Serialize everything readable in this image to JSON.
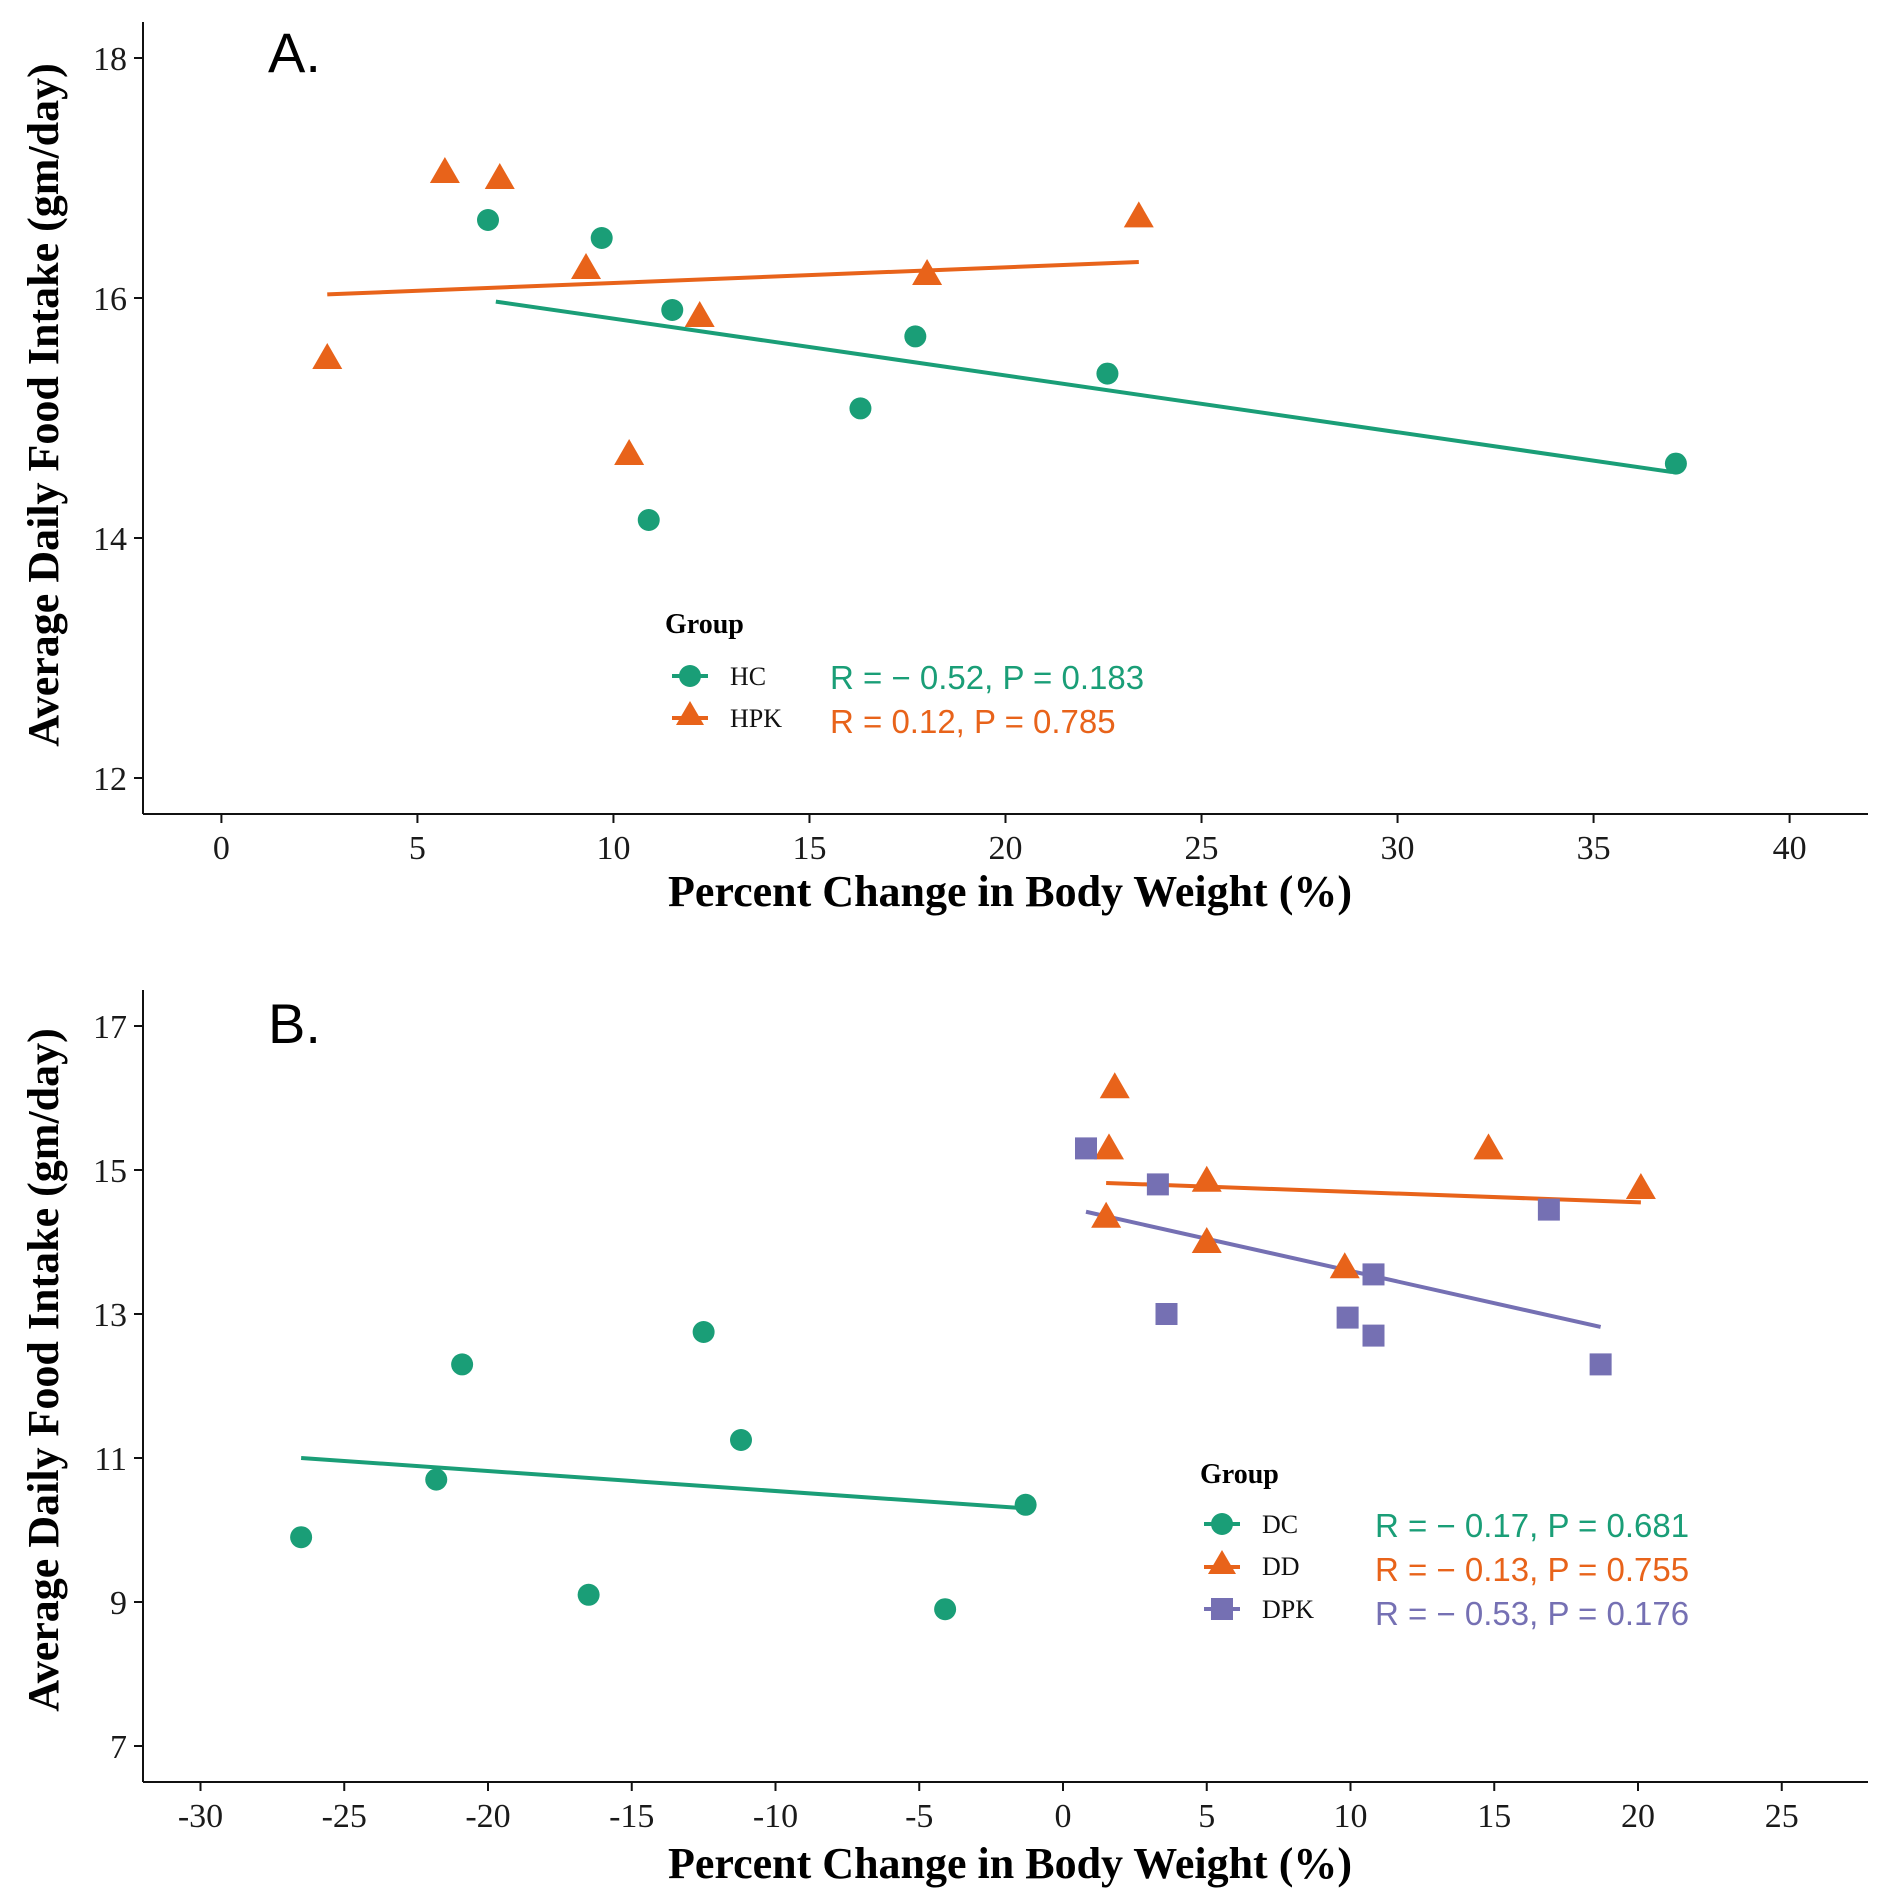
{
  "chart_data": [
    {
      "type": "scatter",
      "panel_label": "A.",
      "xlabel": "Percent Change in Body Weight (%)",
      "ylabel": "Average Daily Food Intake (gm/day)",
      "xlim": [
        -2,
        42
      ],
      "ylim": [
        11.7,
        18.3
      ],
      "xticks": [
        0,
        5,
        10,
        15,
        20,
        25,
        30,
        35,
        40
      ],
      "xtick_labels": [
        "0",
        "5",
        "10",
        "15",
        "20",
        "25",
        "30",
        "35",
        "40"
      ],
      "yticks": [
        12,
        14,
        16,
        18
      ],
      "ytick_labels": [
        "12",
        "14",
        "16",
        "18"
      ],
      "legend": {
        "title": "Group",
        "position": "center-bottom",
        "entries": [
          {
            "label": "HC",
            "marker": "circle",
            "color": "#1a9e77",
            "stat": "R = − 0.52, P = 0.183"
          },
          {
            "label": "HPK",
            "marker": "triangle",
            "color": "#e8631a",
            "stat": "R = 0.12, P = 0.785"
          }
        ]
      },
      "series": [
        {
          "name": "HC",
          "marker": "circle",
          "color": "#1a9e77",
          "points": [
            [
              6.8,
              16.65
            ],
            [
              9.7,
              16.5
            ],
            [
              11.5,
              15.9
            ],
            [
              17.7,
              15.68
            ],
            [
              22.6,
              15.37
            ],
            [
              16.3,
              15.08
            ],
            [
              10.9,
              14.15
            ],
            [
              37.1,
              14.62
            ]
          ],
          "fit": [
            [
              7.0,
              15.97
            ],
            [
              37.0,
              14.55
            ]
          ]
        },
        {
          "name": "HPK",
          "marker": "triangle",
          "color": "#e8631a",
          "points": [
            [
              5.7,
              17.05
            ],
            [
              7.1,
              17.0
            ],
            [
              23.4,
              16.68
            ],
            [
              9.3,
              16.25
            ],
            [
              18.0,
              16.2
            ],
            [
              12.2,
              15.85
            ],
            [
              2.7,
              15.5
            ],
            [
              10.4,
              14.7
            ]
          ],
          "fit": [
            [
              2.7,
              16.03
            ],
            [
              23.4,
              16.3
            ]
          ]
        }
      ]
    },
    {
      "type": "scatter",
      "panel_label": "B.",
      "xlabel": "Percent Change in Body Weight (%)",
      "ylabel": "Average Daily Food Intake (gm/day)",
      "xlim": [
        -32,
        28
      ],
      "ylim": [
        6.5,
        17.5
      ],
      "xticks": [
        -30,
        -25,
        -20,
        -15,
        -10,
        -5,
        0,
        5,
        10,
        15,
        20,
        25
      ],
      "xtick_labels": [
        "-30",
        "-25",
        "-20",
        "-15",
        "-10",
        "-5",
        "0",
        "5",
        "10",
        "15",
        "20",
        "25"
      ],
      "yticks": [
        7,
        9,
        11,
        13,
        15,
        17
      ],
      "ytick_labels": [
        "7",
        "9",
        "11",
        "13",
        "15",
        "17"
      ],
      "legend": {
        "title": "Group",
        "position": "bottom-right",
        "entries": [
          {
            "label": "DC",
            "marker": "circle",
            "color": "#1a9e77",
            "stat": "R = − 0.17, P = 0.681"
          },
          {
            "label": "DD",
            "marker": "triangle",
            "color": "#e8631a",
            "stat": "R = − 0.13, P = 0.755"
          },
          {
            "label": "DPK",
            "marker": "square",
            "color": "#7570b3",
            "stat": "R = − 0.53, P = 0.176"
          }
        ]
      },
      "series": [
        {
          "name": "DC",
          "marker": "circle",
          "color": "#1a9e77",
          "points": [
            [
              -26.5,
              9.9
            ],
            [
              -21.8,
              10.7
            ],
            [
              -20.9,
              12.3
            ],
            [
              -16.5,
              9.1
            ],
            [
              -12.5,
              12.75
            ],
            [
              -11.2,
              11.25
            ],
            [
              -4.1,
              8.9
            ],
            [
              -1.3,
              10.35
            ]
          ],
          "fit": [
            [
              -26.5,
              11.0
            ],
            [
              -1.3,
              10.3
            ]
          ]
        },
        {
          "name": "DD",
          "marker": "triangle",
          "color": "#e8631a",
          "points": [
            [
              1.8,
              16.15
            ],
            [
              1.6,
              15.3
            ],
            [
              14.8,
              15.3
            ],
            [
              5.0,
              14.85
            ],
            [
              20.1,
              14.75
            ],
            [
              1.5,
              14.35
            ],
            [
              5.0,
              14.0
            ],
            [
              9.8,
              13.65
            ]
          ],
          "fit": [
            [
              1.5,
              14.82
            ],
            [
              20.1,
              14.55
            ]
          ]
        },
        {
          "name": "DPK",
          "marker": "square",
          "color": "#7570b3",
          "points": [
            [
              0.8,
              15.3
            ],
            [
              3.3,
              14.8
            ],
            [
              16.9,
              14.45
            ],
            [
              10.8,
              13.55
            ],
            [
              3.6,
              13.0
            ],
            [
              9.9,
              12.95
            ],
            [
              10.8,
              12.7
            ],
            [
              18.7,
              12.3
            ]
          ],
          "fit": [
            [
              0.8,
              14.42
            ],
            [
              18.7,
              12.82
            ]
          ]
        }
      ]
    }
  ]
}
